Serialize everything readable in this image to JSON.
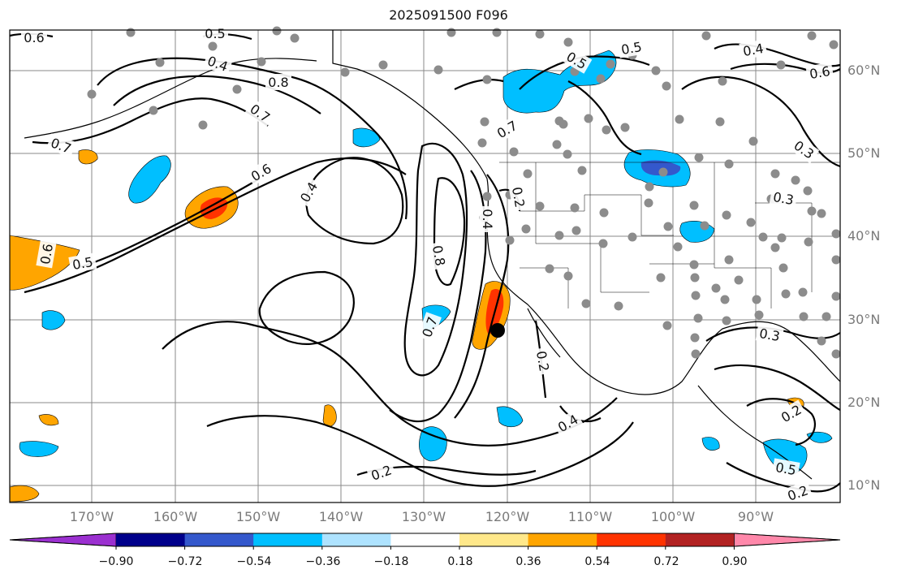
{
  "title": "2025091500 F096",
  "map": {
    "lat_labels": [
      "60°N",
      "50°N",
      "40°N",
      "30°N",
      "20°N",
      "10°N"
    ],
    "lon_labels": [
      "170°W",
      "160°W",
      "150°W",
      "140°W",
      "130°W",
      "120°W",
      "110°W",
      "100°W",
      "90°W"
    ],
    "contour_labels": [
      "0.6",
      "0.5",
      "0.4",
      "0.8",
      "0.7",
      "0.7",
      "0.6",
      "0.4",
      "0.6",
      "0.5",
      "0.8",
      "0.7",
      "0.2",
      "0.4",
      "0.5",
      "0.4",
      "0.6",
      "0.7",
      "0.5",
      "0.3",
      "0.3",
      "0.3",
      "0.2",
      "0.2",
      "0.4",
      "0.2",
      "0.5",
      "0.2"
    ],
    "colors": {
      "contour": "#000000",
      "station": "#8c8c8c",
      "marker": "#000000"
    }
  },
  "colorbar": {
    "tick_labels": [
      "−0.90",
      "−0.72",
      "−0.54",
      "−0.36",
      "−0.18",
      "0.18",
      "0.36",
      "0.54",
      "0.72",
      "0.90"
    ],
    "colors": [
      "#9b30d0",
      "#00008b",
      "#3458cc",
      "#00bfff",
      "#aee3ff",
      "#ffffff",
      "#ffe88a",
      "#ffa500",
      "#ff3300",
      "#b22222",
      "#ff88aa"
    ]
  }
}
